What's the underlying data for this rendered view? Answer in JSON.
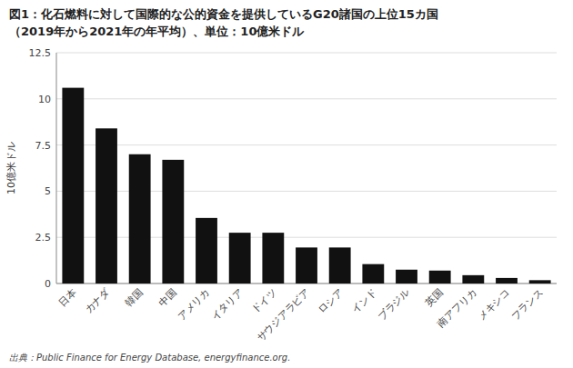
{
  "chart_data": {
    "type": "bar",
    "title": "図1：化石燃料に対して国際的な公的資金を提供しているG20諸国の上位15カ国",
    "subtitle": "（2019年から2021年の年平均）、単位：10億米ドル",
    "categories": [
      "日本",
      "カナダ",
      "韓国",
      "中国",
      "アメリカ",
      "イタリア",
      "ドイツ",
      "サウジアラビア",
      "ロシア",
      "インド",
      "ブラジル",
      "英国",
      "南アフリカ",
      "メキシコ",
      "フランス"
    ],
    "values": [
      10.6,
      8.4,
      7.0,
      6.7,
      3.55,
      2.75,
      2.75,
      1.95,
      1.95,
      1.05,
      0.75,
      0.7,
      0.45,
      0.3,
      0.18
    ],
    "color": "#111111",
    "ylabel": "10億米ドル",
    "ylim": [
      0,
      12.5
    ],
    "yticks": [
      0,
      2.5,
      5,
      7.5,
      10,
      12.5
    ],
    "grid": true,
    "source": "出典：Public Finance for Energy Database, energyfinance.org."
  }
}
